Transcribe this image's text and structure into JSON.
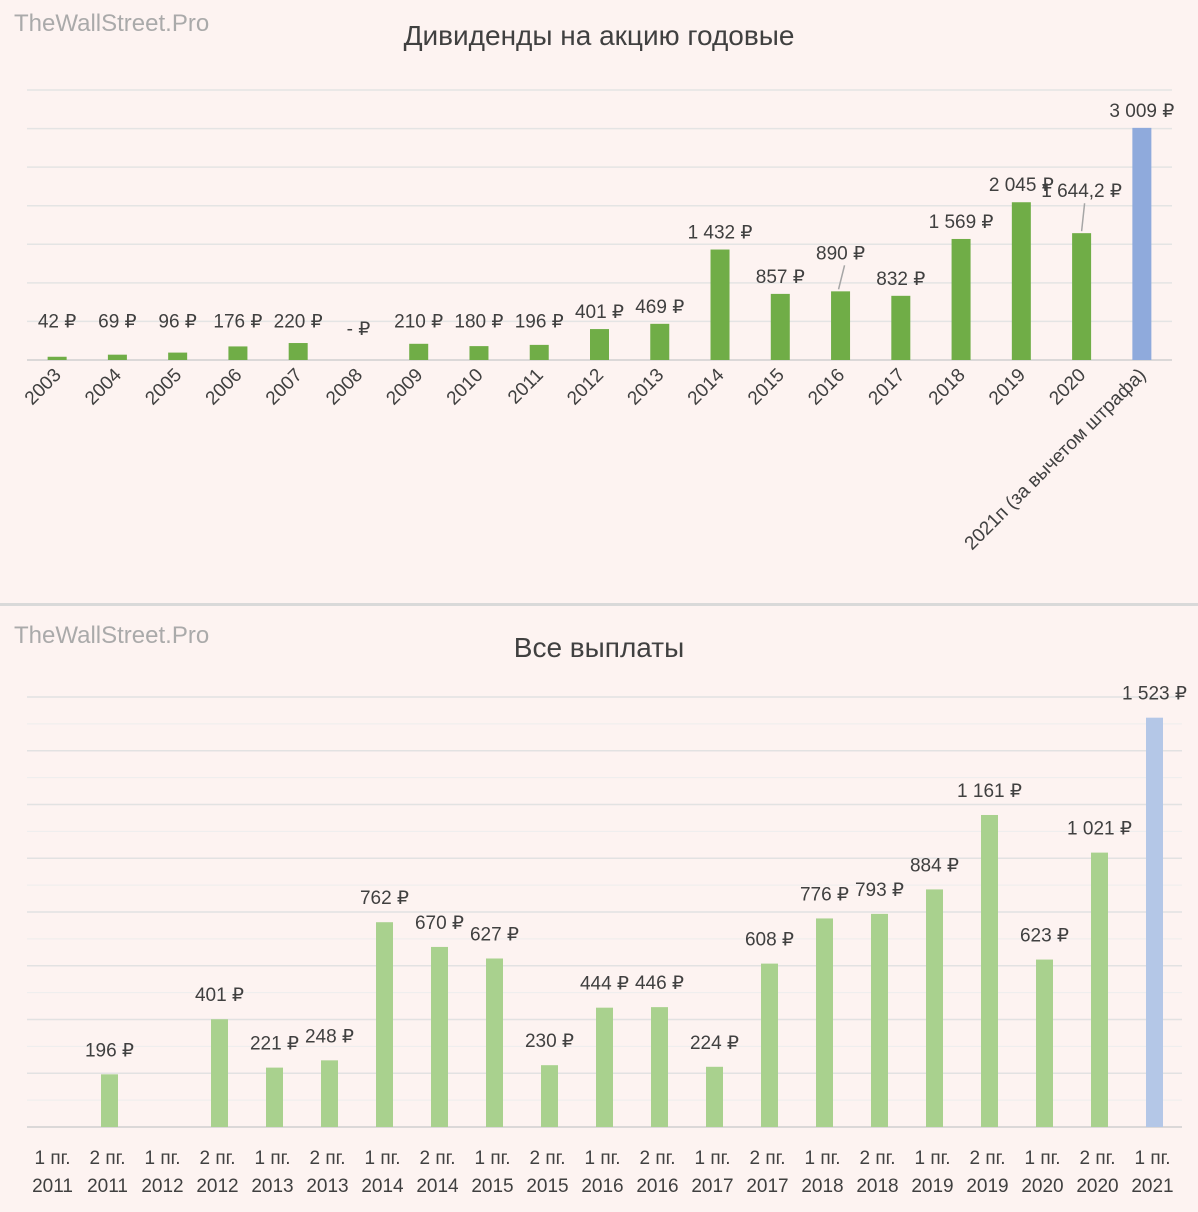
{
  "charts": [
    {
      "watermark": "TheWallStreet.Pro",
      "title": "Дивиденды на акцию годовые",
      "colors": {
        "actual": "#70ad47",
        "forecast": "#8faadc"
      },
      "data_labels": [
        "42 ₽",
        "69 ₽",
        "96 ₽",
        "176 ₽",
        "220 ₽",
        "-   ₽",
        "210 ₽",
        "180 ₽",
        "196 ₽",
        "401 ₽",
        "469 ₽",
        "1 432 ₽",
        "857 ₽",
        "890 ₽",
        "832 ₽",
        "1 569 ₽",
        "2 045 ₽",
        "1 644,2 ₽",
        "3 009 ₽"
      ]
    },
    {
      "watermark": "TheWallStreet.Pro",
      "title": "Все выплаты",
      "colors": {
        "actual": "#a9d18e",
        "forecast": "#b4c7e7"
      },
      "category_labels": [
        [
          "1 пг.",
          "2011"
        ],
        [
          "2 пг.",
          "2011"
        ],
        [
          "1 пг.",
          "2012"
        ],
        [
          "2 пг.",
          "2012"
        ],
        [
          "1 пг.",
          "2013"
        ],
        [
          "2 пг.",
          "2013"
        ],
        [
          "1 пг.",
          "2014"
        ],
        [
          "2 пг.",
          "2014"
        ],
        [
          "1 пг.",
          "2015"
        ],
        [
          "2 пг.",
          "2015"
        ],
        [
          "1 пг.",
          "2016"
        ],
        [
          "2 пг.",
          "2016"
        ],
        [
          "1 пг.",
          "2017"
        ],
        [
          "2 пг.",
          "2017"
        ],
        [
          "1 пг.",
          "2018"
        ],
        [
          "2 пг.",
          "2018"
        ],
        [
          "1 пг.",
          "2019"
        ],
        [
          "2 пг.",
          "2019"
        ],
        [
          "1 пг.",
          "2020"
        ],
        [
          "2 пг.",
          "2020"
        ],
        [
          "1 пг.",
          "2021"
        ]
      ],
      "data_labels": [
        "",
        "196 ₽",
        "",
        "401 ₽",
        "221 ₽",
        "248 ₽",
        "762 ₽",
        "670 ₽",
        "627 ₽",
        "230 ₽",
        "444 ₽",
        "446 ₽",
        "224 ₽",
        "608 ₽",
        "776 ₽",
        "793 ₽",
        "884 ₽",
        "1 161 ₽",
        "623 ₽",
        "1 021 ₽",
        "1 523 ₽"
      ]
    }
  ],
  "chart_data": [
    {
      "type": "bar",
      "title": "Дивиденды на акцию годовые",
      "categories": [
        "2003",
        "2004",
        "2005",
        "2006",
        "2007",
        "2008",
        "2009",
        "2010",
        "2011",
        "2012",
        "2013",
        "2014",
        "2015",
        "2016",
        "2017",
        "2018",
        "2019",
        "2020",
        "2021п (за вычетом штрафа)"
      ],
      "values": [
        42,
        69,
        96,
        176,
        220,
        0,
        210,
        180,
        196,
        401,
        469,
        1432,
        857,
        890,
        832,
        1569,
        2045,
        1644.2,
        3009
      ],
      "forecast_categories": [
        "2021п (за вычетом штрафа)"
      ],
      "ylim": [
        0,
        3500
      ],
      "grid": true
    },
    {
      "type": "bar",
      "title": "Все выплаты",
      "categories": [
        "1 пг. 2011",
        "2 пг. 2011",
        "1 пг. 2012",
        "2 пг. 2012",
        "1 пг. 2013",
        "2 пг. 2013",
        "1 пг. 2014",
        "2 пг. 2014",
        "1 пг. 2015",
        "2 пг. 2015",
        "1 пг. 2016",
        "2 пг. 2016",
        "1 пг. 2017",
        "2 пг. 2017",
        "1 пг. 2018",
        "2 пг. 2018",
        "1 пг. 2019",
        "2 пг. 2019",
        "1 пг. 2020",
        "2 пг. 2020",
        "1 пг. 2021"
      ],
      "values": [
        0,
        196,
        0,
        401,
        221,
        248,
        762,
        670,
        627,
        230,
        444,
        446,
        224,
        608,
        776,
        793,
        884,
        1161,
        623,
        1021,
        1523
      ],
      "forecast_categories": [
        "1 пг. 2021"
      ],
      "ylim": [
        0,
        1600
      ],
      "grid": true
    }
  ]
}
